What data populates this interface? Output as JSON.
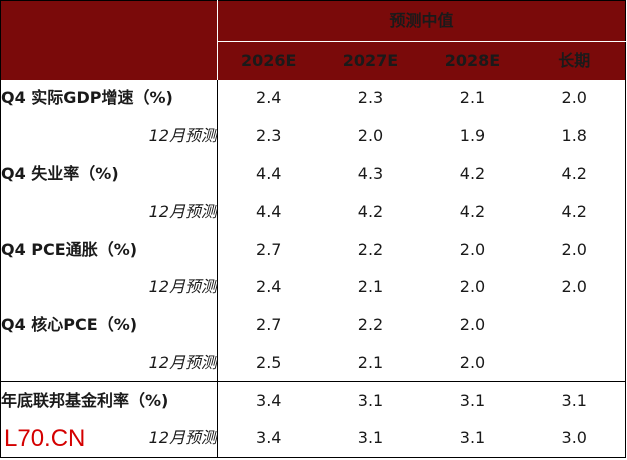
{
  "header": {
    "group_title": "预测中值",
    "columns": [
      "2026E",
      "2027E",
      "2028E",
      "长期"
    ]
  },
  "rows": [
    {
      "label": "Q4 实际GDP增速（%)",
      "values": [
        "2.4",
        "2.3",
        "2.1",
        "2.0"
      ]
    },
    {
      "label": "12月预测",
      "values": [
        "2.3",
        "2.0",
        "1.9",
        "1.8"
      ]
    },
    {
      "label": "Q4 失业率（%)",
      "values": [
        "4.4",
        "4.3",
        "4.2",
        "4.2"
      ]
    },
    {
      "label": "12月预测",
      "values": [
        "4.4",
        "4.2",
        "4.2",
        "4.2"
      ]
    },
    {
      "label": "Q4 PCE通胀（%)",
      "values": [
        "2.7",
        "2.2",
        "2.0",
        "2.0"
      ]
    },
    {
      "label": "12月预测",
      "values": [
        "2.4",
        "2.1",
        "2.0",
        "2.0"
      ]
    },
    {
      "label": "Q4 核心PCE（%)",
      "values": [
        "2.7",
        "2.2",
        "2.0",
        ""
      ]
    },
    {
      "label": "12月预测",
      "values": [
        "2.5",
        "2.1",
        "2.0",
        ""
      ]
    },
    {
      "label": "年底联邦基金利率（%)",
      "values": [
        "3.4",
        "3.1",
        "3.1",
        "3.1"
      ]
    },
    {
      "label": "12月预测",
      "values": [
        "3.4",
        "3.1",
        "3.1",
        "3.0"
      ]
    }
  ],
  "watermark": "L70.CN",
  "colors": {
    "header_bg": "#7a0a0a",
    "header_text": "#ffffff",
    "watermark": "#d40000"
  }
}
